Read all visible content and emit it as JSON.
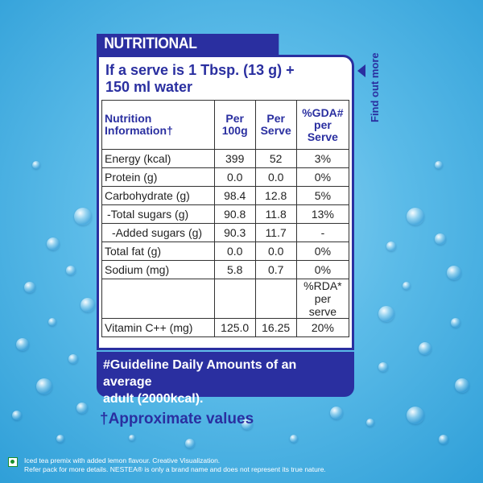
{
  "header": {
    "title": "NUTRITIONAL INFORMATION"
  },
  "serve": {
    "line1": "If a serve is 1 Tbsp. (13 g) +",
    "line2": "150 ml water"
  },
  "table": {
    "headers": {
      "nutrition_line1": "Nutrition",
      "nutrition_line2": "Information†",
      "per100_line1": "Per",
      "per100_line2": "100g",
      "perserve_line1": "Per",
      "perserve_line2": "Serve",
      "gda_line1": "%GDA#",
      "gda_line2": "per",
      "gda_line3": "Serve"
    },
    "rows": [
      {
        "name": "Energy (kcal)",
        "per100": "399",
        "perserve": "52",
        "gda": "3%"
      },
      {
        "name": "Protein (g)",
        "per100": "0.0",
        "perserve": "0.0",
        "gda": "0%"
      },
      {
        "name": "Carbohydrate (g)",
        "per100": "98.4",
        "perserve": "12.8",
        "gda": "5%"
      },
      {
        "name": " -Total sugars (g)",
        "per100": "90.8",
        "perserve": "11.8",
        "gda": "13%"
      },
      {
        "name": "   -Added sugars (g)",
        "per100": "90.3",
        "perserve": "11.7",
        "gda": "-"
      },
      {
        "name": "Total fat (g)",
        "per100": "0.0",
        "perserve": "0.0",
        "gda": "0%"
      },
      {
        "name": "Sodium (mg)",
        "per100": "5.8",
        "perserve": "0.7",
        "gda": "0%"
      }
    ],
    "rda_header_line1": "%RDA*",
    "rda_header_line2": "per serve",
    "vitamin": {
      "name": "Vitamin C++ (mg)",
      "per100": "125.0",
      "perserve": "16.25",
      "rda": "20%"
    }
  },
  "gda_note": {
    "line1": "#Guideline Daily Amounts of an average",
    "line2": "adult (2000kcal)."
  },
  "approx_note": "†Approximate values",
  "find_out_more": "Find out more",
  "footer": {
    "line1": "Iced tea premix with added lemon flavour. Creative Visualization.",
    "line2": "Refer pack for more details. NESTEA® is only a brand name and does not represent its true nature."
  },
  "colors": {
    "brand_blue": "#2a2fa0",
    "veg_green": "#1a8f2e"
  }
}
